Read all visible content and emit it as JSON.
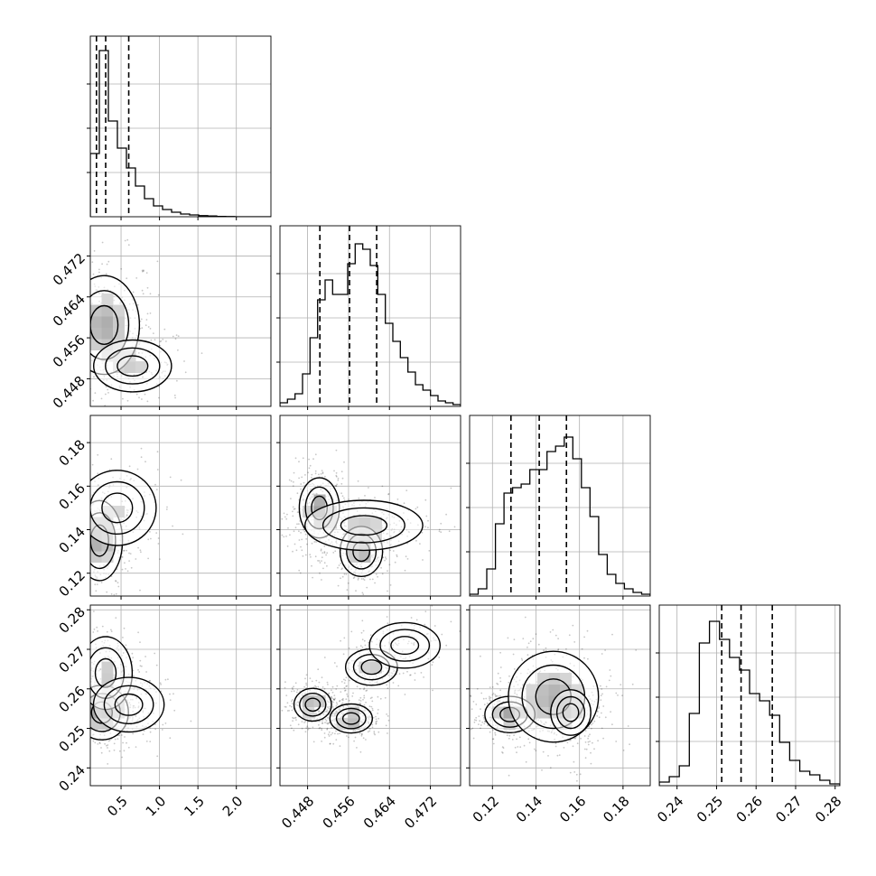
{
  "chart_data": {
    "type": "corner",
    "n_params": 4,
    "grid": true,
    "params": [
      {
        "range": [
          0.1,
          2.45
        ],
        "ticks": [
          0.5,
          1.0,
          1.5,
          2.0
        ],
        "tick_labels": [
          "0.5",
          "1.0",
          "1.5",
          "2.0"
        ],
        "quantiles": [
          0.18,
          0.3,
          0.6
        ],
        "hist": [
          0.35,
          0.92,
          0.53,
          0.38,
          0.27,
          0.17,
          0.1,
          0.06,
          0.04,
          0.025,
          0.015,
          0.01,
          0.006,
          0.004,
          0.002,
          0.001,
          0,
          0,
          0,
          0
        ]
      },
      {
        "range": [
          0.4426,
          0.4779
        ],
        "ticks": [
          0.448,
          0.456,
          0.464,
          0.472
        ],
        "tick_labels": [
          "0.448",
          "0.456",
          "0.464",
          "0.472"
        ],
        "quantiles": [
          0.4504,
          0.4562,
          0.4615
        ],
        "hist": [
          0.02,
          0.04,
          0.07,
          0.18,
          0.38,
          0.59,
          0.7,
          0.62,
          0.62,
          0.79,
          0.9,
          0.87,
          0.78,
          0.62,
          0.46,
          0.36,
          0.27,
          0.19,
          0.12,
          0.09,
          0.06,
          0.03,
          0.02,
          0.01
        ]
      },
      {
        "range": [
          0.1095,
          0.1925
        ],
        "ticks": [
          0.12,
          0.14,
          0.16,
          0.18
        ],
        "tick_labels": [
          "0.12",
          "0.14",
          "0.16",
          "0.18"
        ],
        "quantiles": [
          0.1285,
          0.1415,
          0.154
        ],
        "hist": [
          0.01,
          0.04,
          0.15,
          0.4,
          0.57,
          0.6,
          0.62,
          0.7,
          0.7,
          0.8,
          0.83,
          0.88,
          0.76,
          0.6,
          0.44,
          0.23,
          0.12,
          0.07,
          0.04,
          0.02,
          0.01
        ]
      },
      {
        "range": [
          0.2355,
          0.2812
        ],
        "ticks": [
          0.24,
          0.25,
          0.26,
          0.27,
          0.28
        ],
        "tick_labels": [
          "0.24",
          "0.25",
          "0.26",
          "0.27",
          "0.28"
        ],
        "quantiles": [
          0.2513,
          0.2562,
          0.2641
        ],
        "hist": [
          0.02,
          0.05,
          0.11,
          0.4,
          0.79,
          0.91,
          0.81,
          0.71,
          0.64,
          0.51,
          0.47,
          0.39,
          0.24,
          0.14,
          0.08,
          0.06,
          0.03,
          0.01
        ]
      }
    ],
    "blobs": {
      "1-0": [
        [
          0.28,
          0.4585,
          0.2,
          0.0042,
          0.8
        ],
        [
          0.65,
          0.4505,
          0.22,
          0.0022,
          0.45
        ]
      ],
      "2-0": [
        [
          0.22,
          0.135,
          0.13,
          0.008,
          0.8
        ],
        [
          0.45,
          0.15,
          0.22,
          0.0075,
          0.35
        ]
      ],
      "2-1": [
        [
          0.4503,
          0.15,
          0.0017,
          0.006,
          0.9
        ],
        [
          0.4585,
          0.13,
          0.0018,
          0.005,
          0.75
        ],
        [
          0.459,
          0.142,
          0.005,
          0.005,
          0.45
        ]
      ],
      "3-0": [
        [
          0.25,
          0.254,
          0.15,
          0.003,
          0.85
        ],
        [
          0.3,
          0.264,
          0.15,
          0.004,
          0.5
        ],
        [
          0.6,
          0.256,
          0.2,
          0.003,
          0.3
        ]
      ],
      "3-1": [
        [
          0.449,
          0.256,
          0.0016,
          0.0018,
          0.8
        ],
        [
          0.4565,
          0.2525,
          0.0018,
          0.0016,
          0.9
        ],
        [
          0.4605,
          0.2655,
          0.0022,
          0.002,
          0.5
        ],
        [
          0.467,
          0.271,
          0.003,
          0.0025,
          0.25
        ]
      ],
      "3-2": [
        [
          0.128,
          0.2535,
          0.005,
          0.002,
          0.85
        ],
        [
          0.148,
          0.258,
          0.009,
          0.005,
          0.75
        ],
        [
          0.156,
          0.254,
          0.004,
          0.0025,
          0.45
        ]
      ]
    }
  }
}
